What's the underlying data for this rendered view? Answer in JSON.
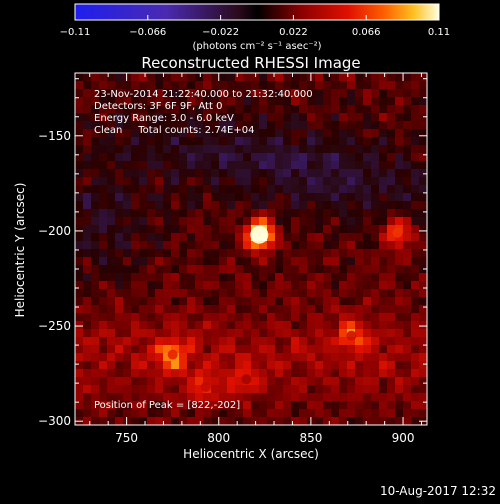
{
  "chart_data": {
    "type": "heatmap",
    "title": "Reconstructed RHESSI Image",
    "xlabel": "Heliocentric X (arcsec)",
    "ylabel": "Heliocentric Y (arcsec)",
    "xlim": [
      722,
      913
    ],
    "ylim": [
      -302,
      -117
    ],
    "x_ticks": [
      {
        "value": 750,
        "label": "750"
      },
      {
        "value": 800,
        "label": "800"
      },
      {
        "value": 850,
        "label": "850"
      },
      {
        "value": 900,
        "label": "900"
      }
    ],
    "y_ticks": [
      {
        "value": -150,
        "label": "−150"
      },
      {
        "value": -200,
        "label": "−200"
      },
      {
        "value": -250,
        "label": "−250"
      },
      {
        "value": -300,
        "label": "−300"
      }
    ],
    "colorbar": {
      "min": -0.11,
      "max": 0.11,
      "ticks": [
        {
          "value": -0.11,
          "label": "−0.11"
        },
        {
          "value": -0.066,
          "label": "−0.066"
        },
        {
          "value": -0.022,
          "label": "−0.022"
        },
        {
          "value": 0.022,
          "label": "0.022"
        },
        {
          "value": 0.066,
          "label": "0.066"
        },
        {
          "value": 0.11,
          "label": "0.11"
        }
      ],
      "unit_label": "(photons cm⁻² s⁻¹ asec⁻²)"
    },
    "annotations": [
      "23-Nov-2014 21:22:40.000 to 21:32:40.000",
      "Detectors: 3F 6F 9F, Att 0",
      "Energy Range: 3.0 - 6.0 keV",
      "Clean     Total counts: 2.74E+04"
    ],
    "peak_label": "Position of Peak = [822,-202]",
    "sources": [
      {
        "x": 822,
        "y": -202,
        "value": 0.11
      },
      {
        "x": 897,
        "y": -201,
        "value": 0.065
      },
      {
        "x": 775,
        "y": -265,
        "value": 0.06
      },
      {
        "x": 793,
        "y": -282,
        "value": 0.045
      },
      {
        "x": 872,
        "y": -255,
        "value": 0.05
      },
      {
        "x": 815,
        "y": -278,
        "value": 0.035
      }
    ],
    "grid": false
  },
  "footer": {
    "date": "10-Aug-2017 12:32"
  }
}
